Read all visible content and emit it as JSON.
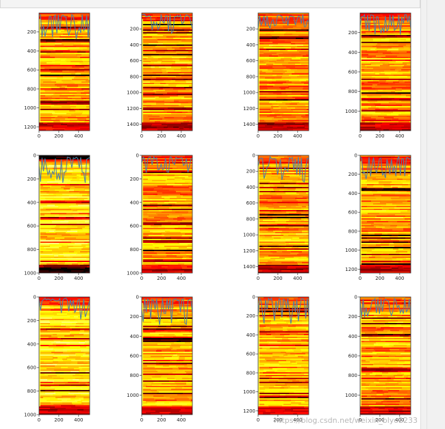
{
  "watermark": "https://blog.csdn.net/weixin_blyo2233",
  "colors": {
    "colormap": "hot",
    "overlay_line": "#4f7fa6"
  },
  "chart_data": [
    {
      "type": "heatmap",
      "colormap": "hot",
      "xlim": [
        0,
        512
      ],
      "ylim": [
        1240,
        0
      ],
      "xticks": [
        0,
        200,
        400
      ],
      "yticks": [
        200,
        400,
        600,
        800,
        1000,
        1200
      ],
      "has_overlay_line": true
    },
    {
      "type": "heatmap",
      "colormap": "hot",
      "xlim": [
        0,
        512
      ],
      "ylim": [
        1480,
        0
      ],
      "xticks": [
        0,
        200,
        400
      ],
      "yticks": [
        200,
        400,
        600,
        800,
        1000,
        1200,
        1400
      ],
      "has_overlay_line": true
    },
    {
      "type": "heatmap",
      "colormap": "hot",
      "xlim": [
        0,
        512
      ],
      "ylim": [
        1480,
        0
      ],
      "xticks": [
        0,
        200,
        400
      ],
      "yticks": [
        200,
        400,
        600,
        800,
        1000,
        1200,
        1400
      ],
      "has_overlay_line": true
    },
    {
      "type": "heatmap",
      "colormap": "hot",
      "xlim": [
        0,
        512
      ],
      "ylim": [
        1200,
        0
      ],
      "xticks": [
        0,
        200,
        400
      ],
      "yticks": [
        200,
        400,
        600,
        800,
        1000
      ],
      "has_overlay_line": true
    },
    {
      "type": "heatmap",
      "colormap": "hot",
      "xlim": [
        0,
        512
      ],
      "ylim": [
        1000,
        0
      ],
      "xticks": [
        0,
        200,
        400
      ],
      "yticks": [
        0,
        200,
        400,
        600,
        800,
        1000
      ],
      "has_overlay_line": true
    },
    {
      "type": "heatmap",
      "colormap": "hot",
      "xlim": [
        0,
        512
      ],
      "ylim": [
        1000,
        0
      ],
      "xticks": [
        0,
        200,
        400
      ],
      "yticks": [
        0,
        200,
        400,
        600,
        800,
        1000
      ],
      "has_overlay_line": true
    },
    {
      "type": "heatmap",
      "colormap": "hot",
      "xlim": [
        0,
        512
      ],
      "ylim": [
        1480,
        0
      ],
      "xticks": [
        0,
        200,
        400
      ],
      "yticks": [
        0,
        200,
        400,
        600,
        800,
        1000,
        1200,
        1400
      ],
      "has_overlay_line": true
    },
    {
      "type": "heatmap",
      "colormap": "hot",
      "xlim": [
        0,
        512
      ],
      "ylim": [
        1240,
        0
      ],
      "xticks": [
        0,
        200,
        400
      ],
      "yticks": [
        0,
        200,
        400,
        600,
        800,
        1000,
        1200
      ],
      "has_overlay_line": true
    },
    {
      "type": "heatmap",
      "colormap": "hot",
      "xlim": [
        0,
        512
      ],
      "ylim": [
        1000,
        0
      ],
      "xticks": [
        0,
        200,
        400
      ],
      "yticks": [
        0,
        200,
        400,
        600,
        800,
        1000
      ],
      "has_overlay_line": true
    },
    {
      "type": "heatmap",
      "colormap": "hot",
      "xlim": [
        0,
        512
      ],
      "ylim": [
        1200,
        0
      ],
      "xticks": [
        0,
        200,
        400
      ],
      "yticks": [
        0,
        200,
        400,
        600,
        800,
        1000
      ],
      "has_overlay_line": true
    },
    {
      "type": "heatmap",
      "colormap": "hot",
      "xlim": [
        0,
        512
      ],
      "ylim": [
        1240,
        0
      ],
      "xticks": [
        0,
        200,
        400
      ],
      "yticks": [
        0,
        200,
        400,
        600,
        800,
        1000,
        1200
      ],
      "has_overlay_line": true
    },
    {
      "type": "heatmap",
      "colormap": "hot",
      "xlim": [
        0,
        512
      ],
      "ylim": [
        1200,
        0
      ],
      "xticks": [
        0,
        200,
        400
      ],
      "yticks": [
        0,
        200,
        400,
        600,
        800,
        1000
      ],
      "has_overlay_line": true
    }
  ]
}
